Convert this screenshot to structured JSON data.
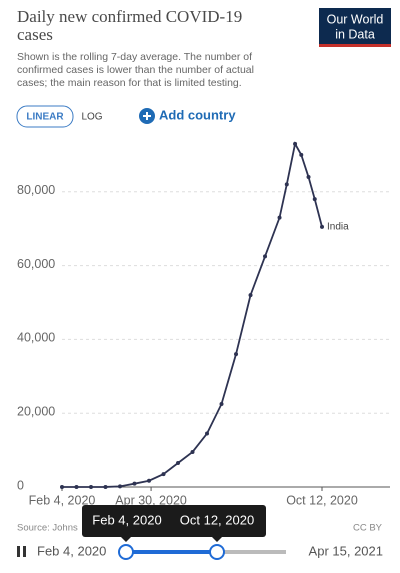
{
  "chart_data": {
    "type": "line",
    "title": [
      "Daily new confirmed COVID-19",
      "cases"
    ],
    "subtitle": [
      "Shown is the rolling 7-day average. The number of",
      "confirmed cases is lower than the number of actual",
      "cases; the main reason for that is limited testing."
    ],
    "x": [
      "2020-02-04",
      "2020-02-18",
      "2020-03-03",
      "2020-03-17",
      "2020-03-31",
      "2020-04-14",
      "2020-04-28",
      "2020-05-12",
      "2020-05-26",
      "2020-06-09",
      "2020-06-23",
      "2020-07-07",
      "2020-07-21",
      "2020-08-04",
      "2020-08-18",
      "2020-09-01",
      "2020-09-08",
      "2020-09-16",
      "2020-09-22",
      "2020-09-29",
      "2020-10-05",
      "2020-10-12"
    ],
    "series": [
      {
        "name": "India",
        "color": "#2e3352",
        "values": [
          0,
          0,
          1,
          14,
          180,
          900,
          1700,
          3500,
          6500,
          9500,
          14500,
          22500,
          36000,
          52000,
          62500,
          73000,
          82000,
          93000,
          90000,
          84000,
          78000,
          70500
        ]
      }
    ],
    "xlim": [
      "2020-02-04",
      "2020-10-12"
    ],
    "xticks": [
      {
        "value": "2020-02-04",
        "label": "Feb 4, 2020"
      },
      {
        "value": "2020-04-30",
        "label": "Apr 30, 2020"
      },
      {
        "value": "2020-10-12",
        "label": "Oct 12, 2020"
      }
    ],
    "ylim": [
      0,
      100000
    ],
    "yticks": [
      0,
      {
        "value": 20000,
        "label": "20,000"
      },
      {
        "value": 40000,
        "label": "40,000"
      },
      {
        "value": 60000,
        "label": "60,000"
      },
      {
        "value": 80000,
        "label": "80,000"
      }
    ],
    "grid": true
  },
  "logo": [
    "Our World",
    "in Data"
  ],
  "controls": {
    "linear": "LINEAR",
    "log": "LOG",
    "add_country": "Add country"
  },
  "source": "Source: Johns",
  "license": "CC BY",
  "timeline": {
    "start": "Feb 4, 2020",
    "end": "Apr 15, 2021",
    "tooltip_start": "Feb 4, 2020",
    "tooltip_end": "Oct 12, 2020"
  }
}
